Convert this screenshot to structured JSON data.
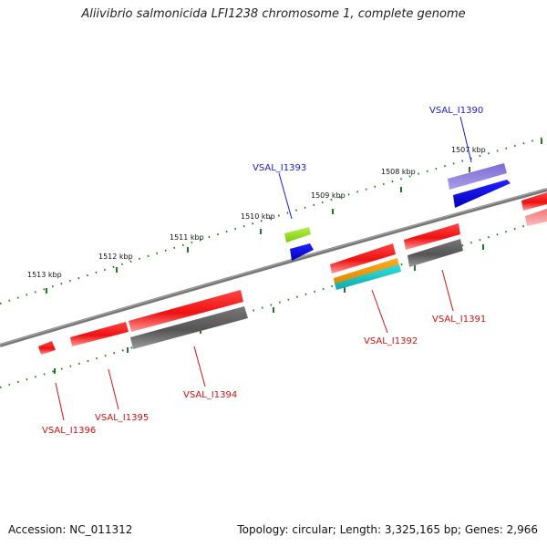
{
  "title": "Aliivibrio salmonicida LFI1238 chromosome 1, complete genome",
  "footer": {
    "accession": "Accession: NC_011312",
    "summary": "Topology: circular; Length: 3,325,165 bp; Genes: 2,966"
  },
  "colors": {
    "backbone": "#7a7a7a",
    "tick": "#1e7a1e",
    "forward_label": "#1a1acc",
    "reverse_label": "#cc1111",
    "red": "#ee1111",
    "gray": "#606060",
    "green": "#99dd22",
    "blue": "#1111ee",
    "purple": "#6a5acd",
    "orange": "#ee9911",
    "cyan": "#22cccc",
    "pink": "#ee8888"
  },
  "ticks": [
    {
      "label": "1513 kbp"
    },
    {
      "label": "1512 kbp"
    },
    {
      "label": "1511 kbp"
    },
    {
      "label": "1510 kbp"
    },
    {
      "label": "1509 kbp"
    },
    {
      "label": "1508 kbp"
    },
    {
      "label": "1507 kbp"
    }
  ],
  "gene_labels": [
    {
      "id": "VSAL_I1390",
      "strand": "forward"
    },
    {
      "id": "VSAL_I1393",
      "strand": "forward"
    },
    {
      "id": "VSAL_I1391",
      "strand": "reverse"
    },
    {
      "id": "VSAL_I1392",
      "strand": "reverse"
    },
    {
      "id": "VSAL_I1394",
      "strand": "reverse"
    },
    {
      "id": "VSAL_I1395",
      "strand": "reverse"
    },
    {
      "id": "VSAL_I1396",
      "strand": "reverse"
    }
  ]
}
